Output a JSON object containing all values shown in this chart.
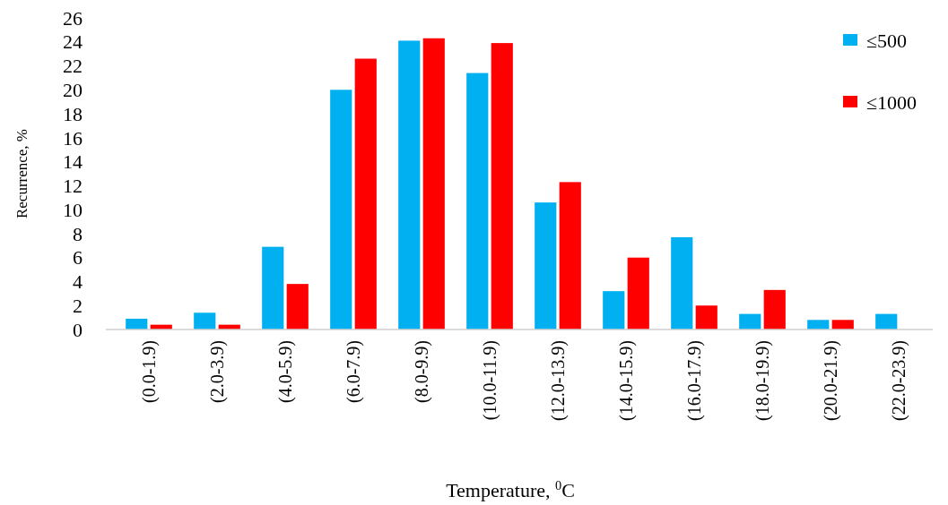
{
  "chart_data": {
    "type": "bar",
    "xlabel": "Temperature, $^{0}$C",
    "ylabel": "Recurrence, %",
    "categories": [
      "(0.0-1.9)",
      "(2.0-3.9)",
      "(4.0-5.9)",
      "(6.0-7.9)",
      "(8.0-9.9)",
      "(10.0-11.9)",
      "(12.0-13.9)",
      "(14.0-15.9)",
      "(16.0-17.9)",
      "(18.0-19.9)",
      "(20.0-21.9)",
      "(22.0-23.9)"
    ],
    "series": [
      {
        "name": "≤500",
        "color": "#00b0f0",
        "values": [
          0.9,
          1.4,
          6.9,
          20.0,
          24.1,
          21.4,
          10.6,
          3.2,
          7.7,
          1.3,
          0.8,
          1.3
        ]
      },
      {
        "name": "≤1000",
        "color": "#ff0000",
        "values": [
          0.4,
          0.4,
          3.8,
          22.6,
          24.3,
          23.9,
          12.3,
          6.0,
          2.0,
          3.3,
          0.8,
          0
        ]
      }
    ],
    "ylim": [
      0,
      26
    ],
    "yticks": [
      0,
      2,
      4,
      6,
      8,
      10,
      12,
      14,
      16,
      18,
      20,
      22,
      24,
      26
    ],
    "grid": false,
    "legend": "top right"
  }
}
